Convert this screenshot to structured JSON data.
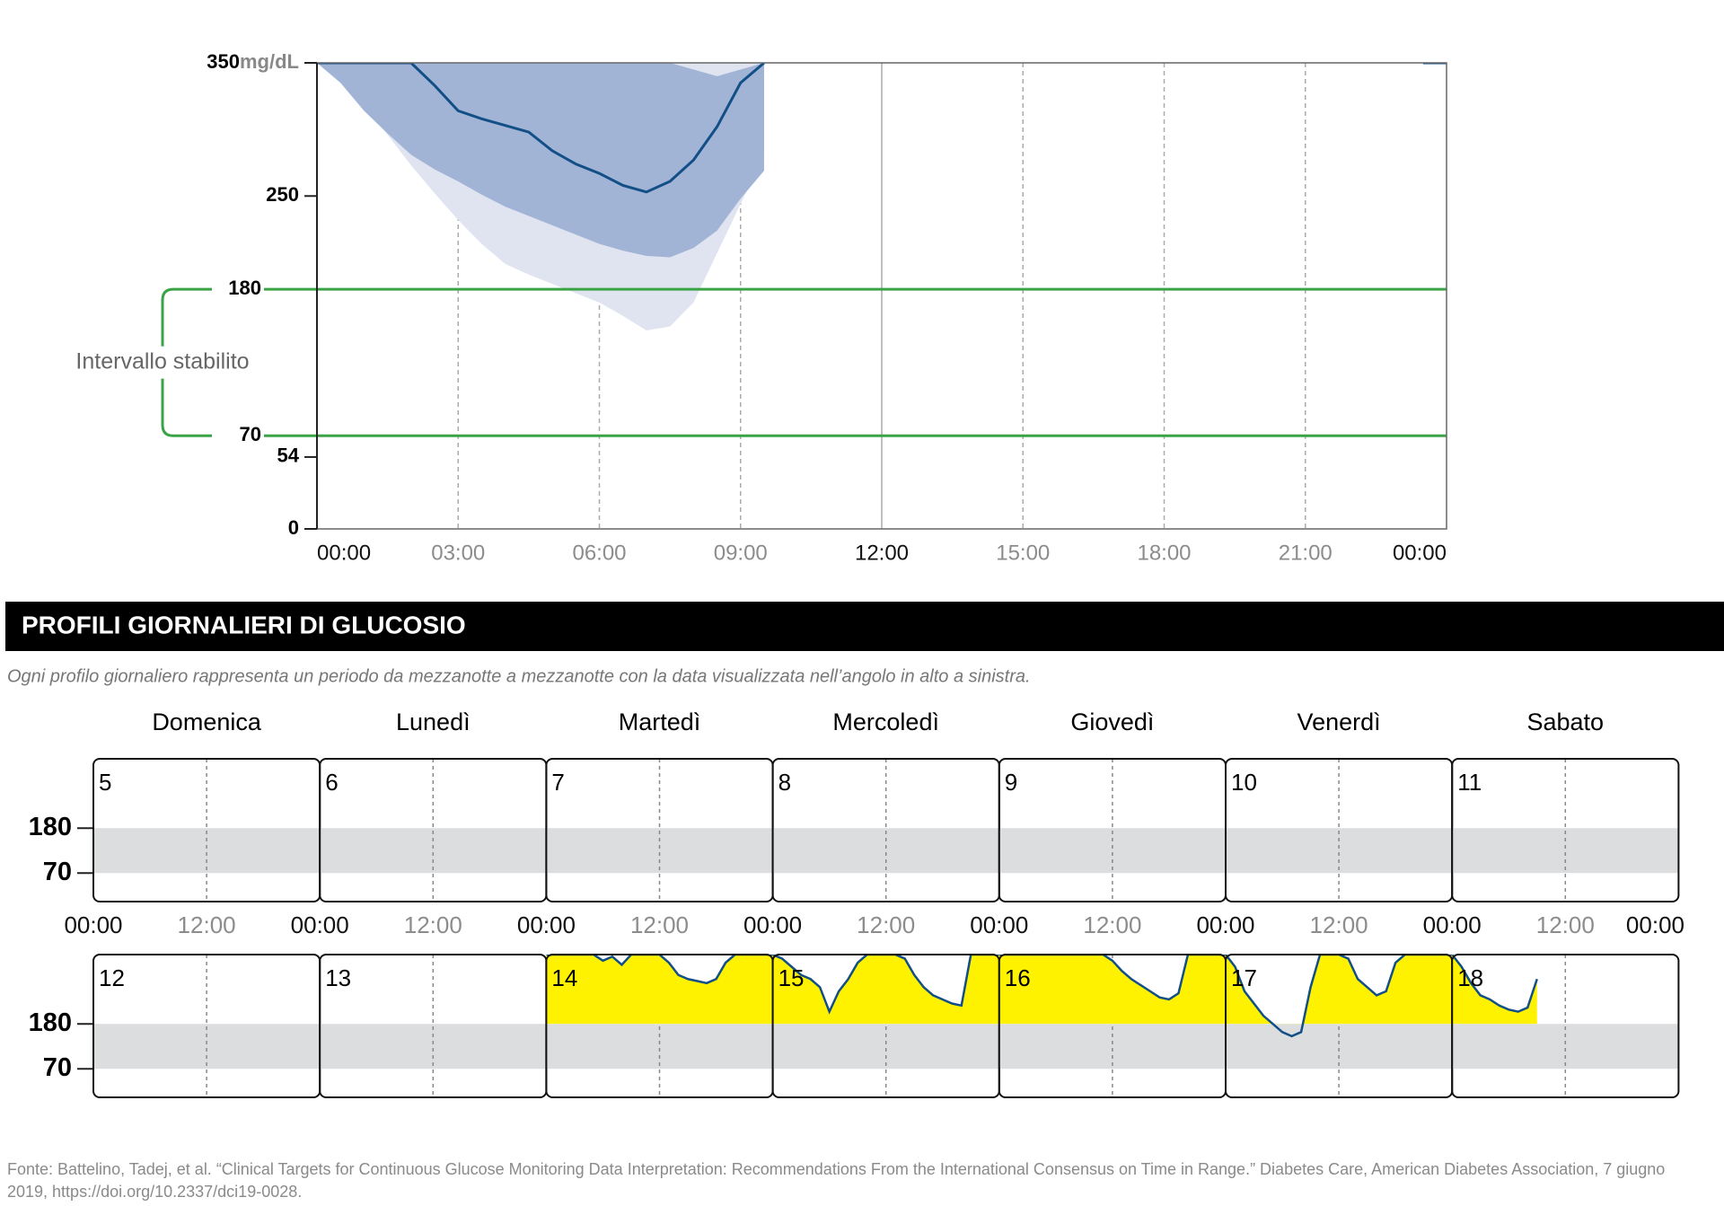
{
  "chart_data": [
    {
      "type": "band",
      "x": [
        0,
        0.5,
        1,
        1.5,
        2,
        2.5,
        3,
        3.5,
        4,
        4.5,
        5,
        5.5,
        6,
        6.5,
        7,
        7.5,
        8,
        8.5,
        9,
        9.5,
        10,
        23.5,
        24
      ],
      "xlim": [
        0,
        24
      ],
      "xticks": [
        {
          "value": 0,
          "label": "00:00"
        },
        {
          "value": 3,
          "label": "03:00"
        },
        {
          "value": 6,
          "label": "06:00"
        },
        {
          "value": 9,
          "label": "09:00"
        },
        {
          "value": 12,
          "label": "12:00"
        },
        {
          "value": 15,
          "label": "15:00"
        },
        {
          "value": 18,
          "label": "18:00"
        },
        {
          "value": 21,
          "label": "21:00"
        },
        {
          "value": 24,
          "label": "00:00"
        }
      ],
      "ylim": [
        0,
        350
      ],
      "yticks": [
        0,
        54,
        70,
        180,
        250,
        350
      ],
      "y_unit": "mg/dL",
      "target_range": {
        "label": "Intervallo stabilito",
        "low": 70,
        "high": 180,
        "color": "#3aa346"
      },
      "bands": [
        {
          "color": "#dfe4f0",
          "low": [
            350,
            338,
            319,
            296,
            273,
            252,
            232,
            214,
            199,
            191,
            184,
            177,
            170,
            160,
            149,
            152,
            170,
            207,
            244,
            281,
            null,
            null,
            null
          ],
          "high": [
            350,
            350,
            350,
            350,
            350,
            350,
            350,
            350,
            350,
            350,
            350,
            350,
            350,
            350,
            350,
            350,
            350,
            350,
            350,
            350,
            null,
            null,
            null
          ]
        },
        {
          "color": "#a2b4d6",
          "low": [
            350,
            335,
            314,
            297,
            281,
            270,
            261,
            251,
            242,
            235,
            228,
            221,
            214,
            209,
            205,
            204,
            211,
            224,
            248,
            269,
            null,
            null,
            null
          ],
          "high": [
            350,
            350,
            350,
            350,
            350,
            350,
            350,
            350,
            350,
            350,
            350,
            350,
            350,
            350,
            350,
            350,
            345,
            340,
            345,
            350,
            null,
            null,
            null
          ]
        }
      ],
      "series": [
        {
          "color": "#124f86",
          "values": [
            350,
            350,
            350,
            350,
            350,
            333,
            314,
            308,
            303,
            298,
            284,
            274,
            267,
            258,
            253,
            261,
            277,
            302,
            335,
            350,
            null,
            350,
            350
          ]
        }
      ]
    },
    {
      "type": "line",
      "weekdays": [
        "Domenica",
        "Lunedì",
        "Martedì",
        "Mercoledì",
        "Giovedì",
        "Venerdì",
        "Sabato"
      ],
      "x": [
        0,
        1,
        2,
        3,
        4,
        5,
        6,
        7,
        8,
        9,
        10,
        11,
        12,
        13,
        14,
        15,
        16,
        17,
        18,
        19,
        20,
        21,
        22,
        23,
        24
      ],
      "xlim": [
        0,
        24
      ],
      "xticks": [
        {
          "value": 0,
          "label": "00:00"
        },
        {
          "value": 12,
          "label": "12:00"
        },
        {
          "value": 24,
          "label": "00:00"
        }
      ],
      "ylim": [
        0,
        350
      ],
      "yticks": [
        70,
        180
      ],
      "target_range": {
        "low": 70,
        "high": 180,
        "color": "#dcdddf"
      },
      "high_fill": {
        "above": 180,
        "color": "#fff200"
      },
      "line_color": "#124f86",
      "days": [
        {
          "day": 5
        },
        {
          "day": 6
        },
        {
          "day": 7
        },
        {
          "day": 8
        },
        {
          "day": 9
        },
        {
          "day": 10
        },
        {
          "day": 11
        },
        {
          "day": 12
        },
        {
          "day": 13
        },
        {
          "day": 14,
          "values": [
            350,
            350,
            350,
            350,
            350,
            350,
            335,
            345,
            325,
            350,
            350,
            350,
            350,
            330,
            300,
            290,
            285,
            280,
            290,
            330,
            350,
            350,
            350,
            350,
            350
          ]
        },
        {
          "day": 15,
          "values": [
            350,
            340,
            320,
            300,
            290,
            270,
            210,
            260,
            290,
            330,
            350,
            350,
            350,
            350,
            340,
            300,
            270,
            250,
            240,
            230,
            225,
            350,
            350,
            350,
            350
          ]
        },
        {
          "day": 16,
          "values": [
            350,
            350,
            350,
            350,
            350,
            350,
            350,
            350,
            350,
            350,
            350,
            350,
            335,
            310,
            290,
            275,
            260,
            245,
            240,
            255,
            350,
            350,
            350,
            350,
            350
          ]
        },
        {
          "day": 17,
          "values": [
            350,
            320,
            260,
            230,
            200,
            180,
            160,
            150,
            160,
            270,
            350,
            350,
            350,
            340,
            290,
            270,
            250,
            260,
            330,
            350,
            350,
            350,
            350,
            350,
            350
          ]
        },
        {
          "day": 18,
          "values": [
            350,
            320,
            280,
            250,
            240,
            225,
            215,
            210,
            220,
            290,
            null,
            null,
            null,
            null,
            null,
            null,
            null,
            null,
            null,
            null,
            null,
            null,
            null,
            null,
            null
          ]
        }
      ]
    }
  ],
  "section": {
    "title": "PROFILI GIORNALIERI DI GLUCOSIO",
    "subtitle": "Ogni profilo giornaliero rappresenta un periodo da mezzanotte a mezzanotte con la data visualizzata nell’angolo in alto a sinistra."
  },
  "source": "Fonte: Battelino, Tadej, et al. “Clinical Targets for Continuous Glucose Monitoring Data Interpretation: Recommendations From the International Consensus on Time in Range.” Diabetes Care, American Diabetes Association, 7 giugno 2019, https://doi.org/10.2337/dci19-0028."
}
